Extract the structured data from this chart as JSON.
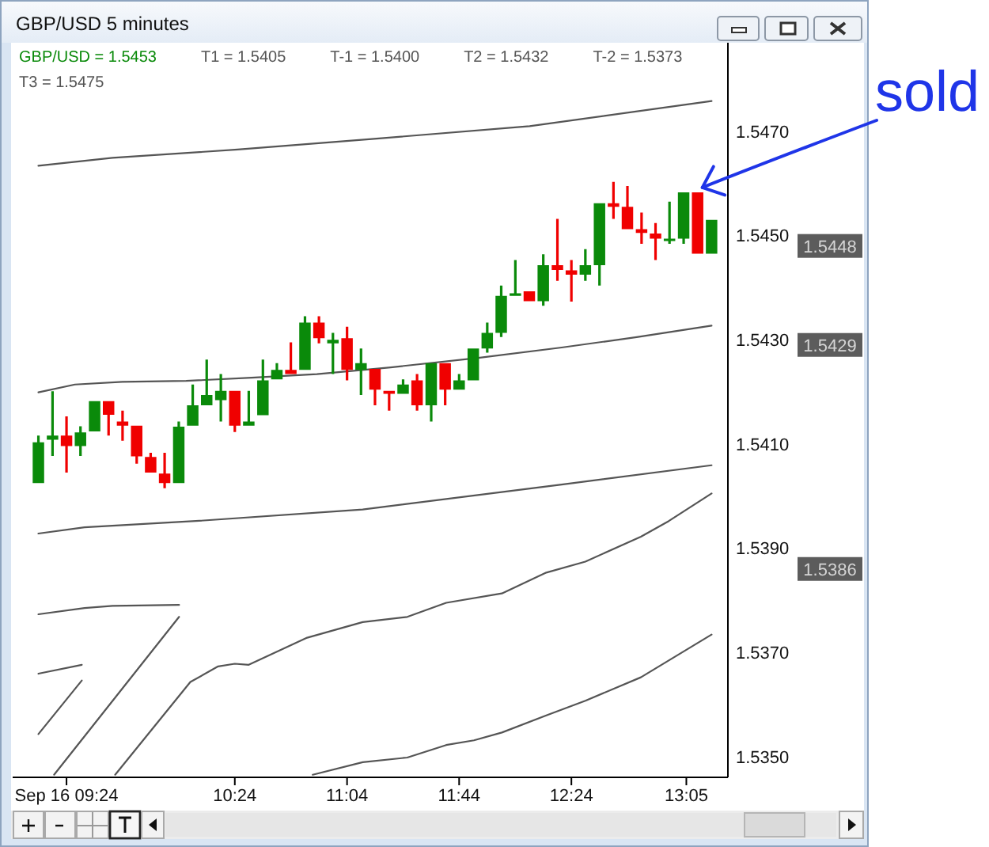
{
  "chart_data": {
    "type": "candlestick",
    "title": "GBP/USD 5 minutes",
    "xlim": [
      9.08,
      13.33
    ],
    "xticks": [
      {
        "value": 9.4,
        "label": "Sep 16 09:24"
      },
      {
        "value": 10.4,
        "label": "10:24"
      },
      {
        "value": 11.067,
        "label": "11:04"
      },
      {
        "value": 11.733,
        "label": "11:44"
      },
      {
        "value": 12.4,
        "label": "12:24"
      },
      {
        "value": 13.083,
        "label": "13:05"
      }
    ],
    "ylim": [
      1.5346,
      1.5487
    ],
    "yticks": [
      {
        "value": 1.535,
        "label": "1.5350"
      },
      {
        "value": 1.537,
        "label": "1.5370"
      },
      {
        "value": 1.539,
        "label": "1.5390"
      },
      {
        "value": 1.541,
        "label": "1.5410"
      },
      {
        "value": 1.543,
        "label": "1.5430"
      },
      {
        "value": 1.545,
        "label": "1.5450"
      },
      {
        "value": 1.547,
        "label": "1.5470"
      }
    ],
    "series": [
      {
        "color": "#0a8a0a",
        "x": [
          9.233,
          9.317,
          9.4,
          9.483,
          9.567,
          9.65,
          9.733,
          9.817,
          9.9,
          9.983,
          10.067,
          10.15,
          10.233,
          10.317,
          10.4,
          10.483,
          10.567,
          10.65,
          10.733,
          10.817,
          10.9,
          10.983,
          11.067,
          11.15,
          11.233,
          11.317,
          11.4,
          11.483,
          11.567,
          11.65,
          11.733,
          11.817,
          11.9,
          11.983,
          12.067,
          12.15,
          12.233,
          12.317,
          12.4,
          12.483,
          12.567,
          12.65,
          12.733,
          12.817,
          12.9,
          12.983,
          13.067,
          13.15,
          13.233
        ],
        "ohlc": [
          [
            1.54025,
            1.54116,
            1.54025,
            1.54103
          ],
          [
            1.54108,
            1.54201,
            1.54077,
            1.54116
          ],
          [
            1.54116,
            1.54153,
            1.54045,
            1.54096
          ],
          [
            1.54096,
            1.54134,
            1.54077,
            1.54122
          ],
          [
            1.54124,
            1.54182,
            1.54124,
            1.54182
          ],
          [
            1.54182,
            1.54182,
            1.54116,
            1.54156
          ],
          [
            1.54143,
            1.54164,
            1.54106,
            1.54135
          ],
          [
            1.54135,
            1.54135,
            1.54062,
            1.54076
          ],
          [
            1.54075,
            1.54083,
            1.54045,
            1.54045
          ],
          [
            1.54043,
            1.54083,
            1.54015,
            1.54025
          ],
          [
            1.54025,
            1.54143,
            1.54025,
            1.54133
          ],
          [
            1.54135,
            1.54214,
            1.54135,
            1.54174
          ],
          [
            1.54174,
            1.54262,
            1.54174,
            1.54194
          ],
          [
            1.54184,
            1.54234,
            1.54143,
            1.54202
          ],
          [
            1.54202,
            1.54202,
            1.54123,
            1.54135
          ],
          [
            1.54135,
            1.54202,
            1.54135,
            1.54143
          ],
          [
            1.54155,
            1.54262,
            1.54155,
            1.54222
          ],
          [
            1.54224,
            1.54255,
            1.54224,
            1.54242
          ],
          [
            1.54242,
            1.54295,
            1.54234,
            1.54234
          ],
          [
            1.54242,
            1.54345,
            1.54242,
            1.54333
          ],
          [
            1.54333,
            1.54345,
            1.54293,
            1.54303
          ],
          [
            1.54293,
            1.54313,
            1.54234,
            1.543
          ],
          [
            1.54303,
            1.54325,
            1.54222,
            1.54242
          ],
          [
            1.54242,
            1.54283,
            1.54194,
            1.54255
          ],
          [
            1.54244,
            1.54244,
            1.54174,
            1.54204
          ],
          [
            1.54202,
            1.54202,
            1.54164,
            1.54196
          ],
          [
            1.54196,
            1.54224,
            1.54196,
            1.54214
          ],
          [
            1.54222,
            1.54234,
            1.54164,
            1.54174
          ],
          [
            1.54174,
            1.54255,
            1.54143,
            1.54255
          ],
          [
            1.54255,
            1.54255,
            1.54174,
            1.54204
          ],
          [
            1.54204,
            1.54234,
            1.54204,
            1.54222
          ],
          [
            1.54222,
            1.54283,
            1.54222,
            1.54283
          ],
          [
            1.54283,
            1.54333,
            1.54275,
            1.54313
          ],
          [
            1.54313,
            1.54404,
            1.54305,
            1.54384
          ],
          [
            1.54384,
            1.54453,
            1.54384,
            1.54389
          ],
          [
            1.54393,
            1.54393,
            1.54374,
            1.54374
          ],
          [
            1.54374,
            1.54464,
            1.54365,
            1.54443
          ],
          [
            1.54443,
            1.54532,
            1.54413,
            1.54434
          ],
          [
            1.54433,
            1.54453,
            1.54373,
            1.54425
          ],
          [
            1.54425,
            1.54474,
            1.54413,
            1.54443
          ],
          [
            1.54443,
            1.54562,
            1.54404,
            1.54562
          ],
          [
            1.54562,
            1.54603,
            1.54532,
            1.54555
          ],
          [
            1.54555,
            1.54595,
            1.54512,
            1.54512
          ],
          [
            1.54512,
            1.54544,
            1.54484,
            1.54505
          ],
          [
            1.54504,
            1.54524,
            1.54453,
            1.54494
          ],
          [
            1.54494,
            1.54565,
            1.54484,
            1.54494
          ],
          [
            1.54494,
            1.54583,
            1.54484,
            1.54583
          ],
          [
            1.54583,
            1.54583,
            1.54465,
            1.54465
          ],
          [
            1.54465,
            1.5453,
            1.54465,
            1.5453
          ]
        ],
        "colors": [
          "#0a8a0a",
          "#0a8a0a",
          "#f00000",
          "#0a8a0a",
          "#0a8a0a",
          "#f00000",
          "#f00000",
          "#f00000",
          "#f00000",
          "#f00000",
          "#0a8a0a",
          "#0a8a0a",
          "#0a8a0a",
          "#0a8a0a",
          "#f00000",
          "#0a8a0a",
          "#0a8a0a",
          "#0a8a0a",
          "#f00000",
          "#0a8a0a",
          "#f00000",
          "#0a8a0a",
          "#f00000",
          "#0a8a0a",
          "#f00000",
          "#f00000",
          "#0a8a0a",
          "#f00000",
          "#0a8a0a",
          "#f00000",
          "#0a8a0a",
          "#0a8a0a",
          "#0a8a0a",
          "#0a8a0a",
          "#0a8a0a",
          "#f00000",
          "#0a8a0a",
          "#f00000",
          "#f00000",
          "#0a8a0a",
          "#0a8a0a",
          "#f00000",
          "#f00000",
          "#f00000",
          "#f00000",
          "#0a8a0a",
          "#0a8a0a",
          "#f00000",
          "#0a8a0a"
        ]
      },
      {
        "type": "line",
        "color": "#555555",
        "x": [
          9.233,
          9.507,
          10.169,
          11.16,
          12.342,
          13.233
        ],
        "values": [
          1.53928,
          1.5394,
          1.53952,
          1.53974,
          1.54022,
          1.54059
        ]
      },
      {
        "type": "line",
        "color": "#555555",
        "x": [
          9.689,
          10.136,
          10.301,
          10.4,
          10.483,
          10.83,
          11.16,
          11.425,
          11.656,
          11.987,
          12.251,
          12.483,
          12.813,
          12.979,
          13.233
        ],
        "values": [
          1.53465,
          1.53643,
          1.53673,
          1.53678,
          1.53676,
          1.53728,
          1.53758,
          1.53768,
          1.53795,
          1.53813,
          1.53853,
          1.53874,
          1.53922,
          1.53952,
          1.54005
        ]
      },
      {
        "type": "line",
        "color": "#555555",
        "x": [
          9.233,
          9.45,
          9.731,
          10.111,
          10.499,
          10.888,
          11.326,
          11.846,
          12.342,
          12.788,
          13.233
        ],
        "values": [
          1.54199,
          1.54214,
          1.54219,
          1.54221,
          1.54227,
          1.54234,
          1.54247,
          1.54265,
          1.54285,
          1.54305,
          1.54327
        ]
      },
      {
        "type": "line",
        "color": "#555555",
        "x": [
          10.863,
          11.16,
          11.425,
          11.656,
          11.821,
          11.987,
          12.251,
          12.483,
          12.813,
          13.233
        ],
        "values": [
          1.53465,
          1.53489,
          1.53498,
          1.53522,
          1.53531,
          1.53546,
          1.53579,
          1.53607,
          1.53652,
          1.53734
        ]
      },
      {
        "type": "line",
        "color": "#555555",
        "x": [
          9.233,
          9.673,
          10.417,
          11.243,
          12.152,
          13.233
        ],
        "values": [
          1.54634,
          1.54649,
          1.54665,
          1.54686,
          1.5471,
          1.54758
        ]
      },
      {
        "type": "line",
        "color": "#555555",
        "x": [
          9.233,
          9.507,
          9.673,
          10.069
        ],
        "values": [
          1.53773,
          1.53785,
          1.53789,
          1.53791
        ]
      },
      {
        "type": "line",
        "color": "#555555",
        "x": [
          9.233,
          9.491
        ],
        "values": [
          1.53659,
          1.53676
        ]
      },
      {
        "type": "line",
        "color": "#555555",
        "x": [
          9.233,
          9.491
        ],
        "values": [
          1.53543,
          1.53646
        ]
      },
      {
        "type": "line",
        "color": "#555555",
        "x": [
          9.326,
          10.069
        ],
        "values": [
          1.53465,
          1.53768
        ]
      }
    ],
    "annotations": [
      {
        "text": "sold",
        "x": 13.15,
        "y": 1.54583
      },
      "GBP/USD = 1.5453",
      "T1 = 1.5405",
      "T-1 = 1.5400",
      "T2 = 1.5432",
      "T-2 = 1.5373",
      "T3 = 1.5475",
      "1.5448",
      "1.5429",
      "1.5386"
    ]
  }
}
